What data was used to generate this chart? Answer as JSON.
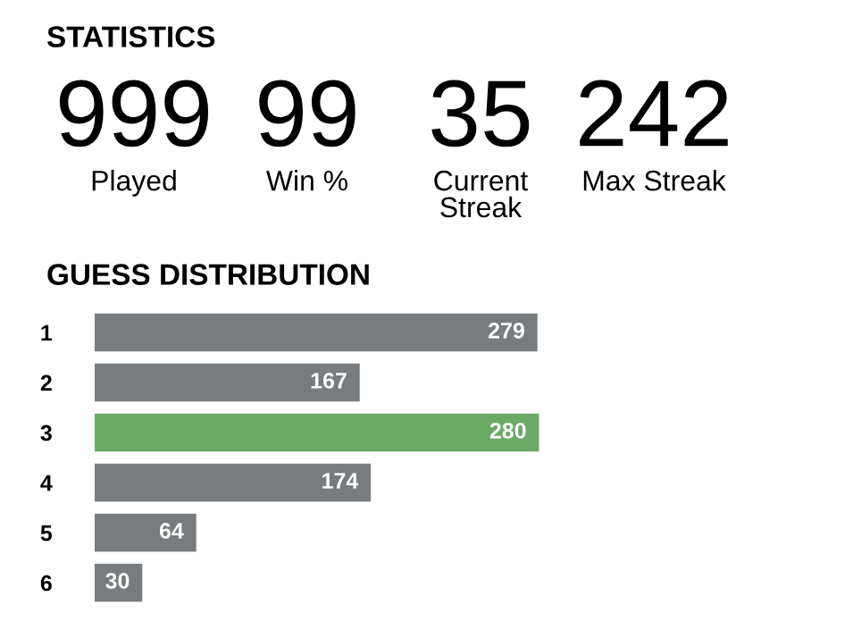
{
  "chart_data": [
    {
      "type": "other",
      "title": "STATISTICS",
      "categories": [
        "Played",
        "Win %",
        "Current\nStreak",
        "Max Streak"
      ],
      "values": [
        999,
        99,
        35,
        242
      ],
      "data_labels": true
    },
    {
      "type": "bar",
      "orientation": "horizontal",
      "title": "GUESS DISTRIBUTION",
      "categories": [
        "1",
        "2",
        "3",
        "4",
        "5",
        "6"
      ],
      "values": [
        279,
        167,
        280,
        174,
        64,
        30
      ],
      "colors": [
        "#787c7e",
        "#787c7e",
        "#6aaa64",
        "#787c7e",
        "#787c7e",
        "#787c7e"
      ],
      "data_labels": true,
      "tick_labels": "y"
    }
  ]
}
